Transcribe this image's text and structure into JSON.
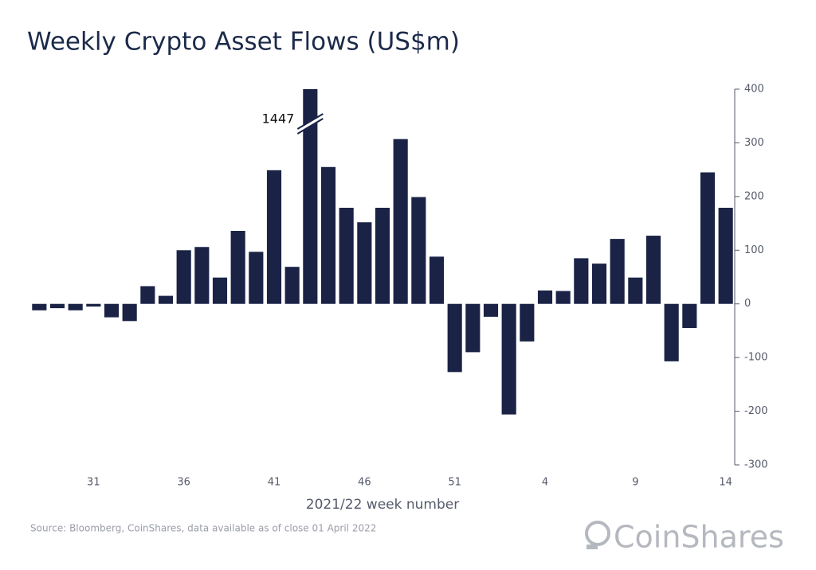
{
  "chart_data": {
    "type": "bar",
    "title": "Weekly Crypto Asset Flows (US$m)",
    "x_label": "2021/22 week number",
    "source": "Source: Bloomberg, CoinShares, data available as of close 01 April 2022",
    "logo": "CoinShares",
    "annotation": "1447",
    "color": "#1a2346",
    "categories": [
      null,
      null,
      null,
      "31",
      null,
      null,
      null,
      null,
      "36",
      null,
      null,
      null,
      null,
      "41",
      null,
      null,
      null,
      null,
      "46",
      null,
      null,
      null,
      null,
      "51",
      null,
      null,
      null,
      null,
      "4",
      null,
      null,
      null,
      null,
      "9",
      null,
      null,
      null,
      null,
      "14"
    ],
    "values": [
      -12,
      -8,
      -12,
      -5,
      -25,
      -32,
      33,
      15,
      100,
      106,
      49,
      136,
      97,
      249,
      69,
      1447,
      255,
      179,
      152,
      179,
      307,
      199,
      88,
      -127,
      -90,
      -24,
      -206,
      -70,
      25,
      24,
      85,
      75,
      121,
      49,
      127,
      -107,
      -45,
      245,
      179
    ],
    "ylim": [
      -300,
      400
    ],
    "yticks": [
      400,
      300,
      200,
      100,
      0,
      -100,
      -200,
      -300
    ],
    "y_axis_side": "right"
  }
}
